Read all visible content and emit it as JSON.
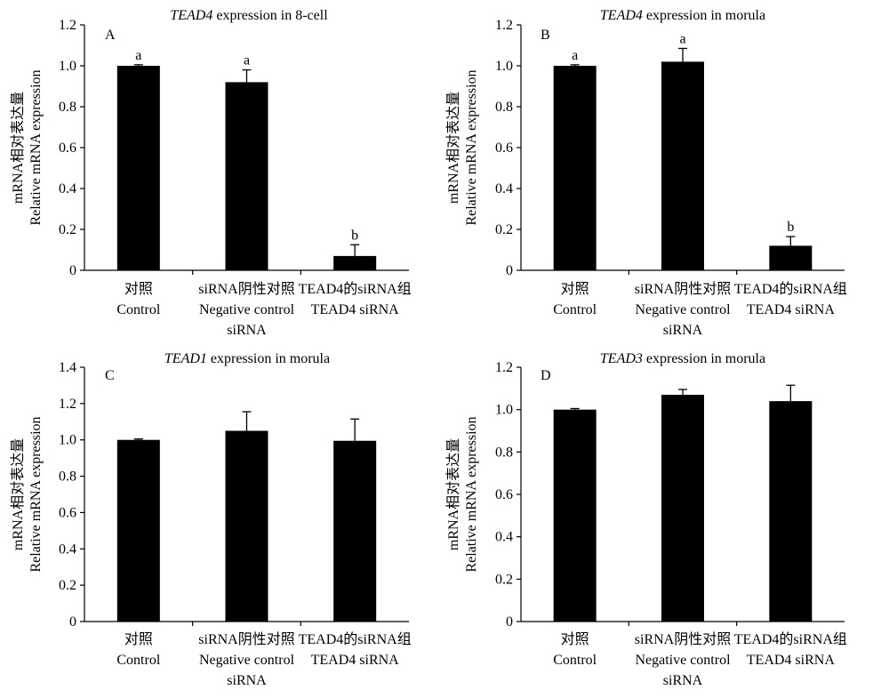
{
  "categories": [
    [
      "对照",
      "Control"
    ],
    [
      "siRNA阴性对照",
      "Negative control",
      "siRNA"
    ],
    [
      "TEAD4的siRNA组",
      "TEAD4 siRNA"
    ]
  ],
  "ylabel": [
    "mRNA相对表达量",
    "Relative mRNA expression"
  ],
  "chart_data": [
    {
      "type": "bar",
      "panel": "A",
      "title": {
        "italic": "TEAD4",
        "rest": " expression in 8-cell"
      },
      "categories": [
        "对照 Control",
        "siRNA阴性对照 Negative control siRNA",
        "TEAD4的siRNA组 TEAD4 siRNA"
      ],
      "values": [
        1.0,
        0.92,
        0.07
      ],
      "errors": [
        0.005,
        0.06,
        0.055
      ],
      "labels": [
        "a",
        "a",
        "b"
      ],
      "ylim": [
        0,
        1.2
      ],
      "yticks": [
        0,
        0.2,
        0.4,
        0.6,
        0.8,
        1.0,
        1.2
      ],
      "ytick_labels": [
        "0",
        "0.2",
        "0.4",
        "0.6",
        "0.8",
        "1.0",
        "1.2"
      ]
    },
    {
      "type": "bar",
      "panel": "B",
      "title": {
        "italic": "TEAD4",
        "rest": " expression in morula"
      },
      "categories": [
        "对照 Control",
        "siRNA阴性对照 Negative control siRNA",
        "TEAD4的siRNA组 TEAD4 siRNA"
      ],
      "values": [
        1.0,
        1.02,
        0.12
      ],
      "errors": [
        0.005,
        0.065,
        0.045
      ],
      "labels": [
        "a",
        "a",
        "b"
      ],
      "ylim": [
        0,
        1.2
      ],
      "yticks": [
        0,
        0.2,
        0.4,
        0.6,
        0.8,
        1.0,
        1.2
      ],
      "ytick_labels": [
        "0",
        "0.2",
        "0.4",
        "0.6",
        "0.8",
        "1.0",
        "1.2"
      ]
    },
    {
      "type": "bar",
      "panel": "C",
      "title": {
        "italic": "TEAD1",
        "rest": " expression in morula"
      },
      "categories": [
        "对照 Control",
        "siRNA阴性对照 Negative control siRNA",
        "TEAD4的siRNA组 TEAD4 siRNA"
      ],
      "values": [
        1.0,
        1.05,
        0.995
      ],
      "errors": [
        0.005,
        0.105,
        0.12
      ],
      "labels": [
        "",
        "",
        ""
      ],
      "ylim": [
        0,
        1.4
      ],
      "yticks": [
        0,
        0.2,
        0.4,
        0.6,
        0.8,
        1.0,
        1.2,
        1.4
      ],
      "ytick_labels": [
        "0",
        "0.2",
        "0.4",
        "0.6",
        "0.8",
        "1.0",
        "1.2",
        "1.4"
      ]
    },
    {
      "type": "bar",
      "panel": "D",
      "title": {
        "italic": "TEAD3",
        "rest": " expression in morula"
      },
      "categories": [
        "对照 Control",
        "siRNA阴性对照 Negative control siRNA",
        "TEAD4的siRNA组 TEAD4 siRNA"
      ],
      "values": [
        1.0,
        1.07,
        1.04
      ],
      "errors": [
        0.005,
        0.025,
        0.075
      ],
      "labels": [
        "",
        "",
        ""
      ],
      "ylim": [
        0,
        1.2
      ],
      "yticks": [
        0,
        0.2,
        0.4,
        0.6,
        0.8,
        1.0,
        1.2
      ],
      "ytick_labels": [
        "0",
        "0.2",
        "0.4",
        "0.6",
        "0.8",
        "1.0",
        "1.2"
      ]
    }
  ]
}
